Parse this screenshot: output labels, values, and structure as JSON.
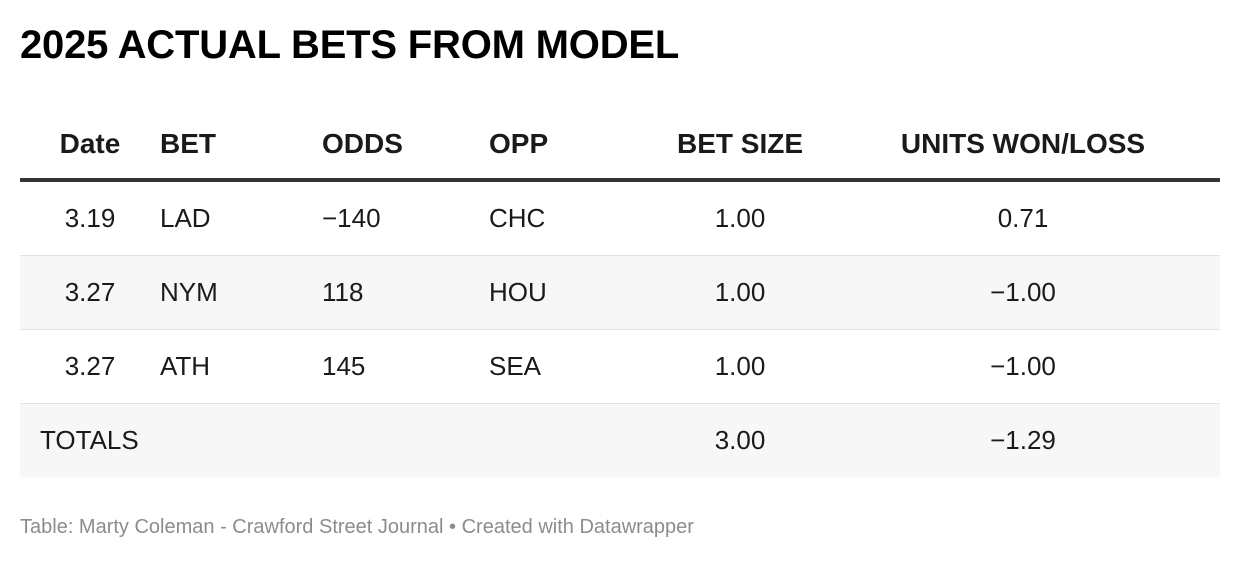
{
  "title": "2025 ACTUAL BETS FROM MODEL",
  "chart_data": {
    "type": "table",
    "title": "2025 ACTUAL BETS FROM MODEL",
    "columns": [
      "Date",
      "BET",
      "ODDS",
      "OPP",
      "BET SIZE",
      "UNITS WON/LOSS"
    ],
    "rows": [
      {
        "date": "3.19",
        "bet": "LAD",
        "odds": "−140",
        "opp": "CHC",
        "bet_size": "1.00",
        "units": "0.71"
      },
      {
        "date": "3.27",
        "bet": "NYM",
        "odds": "118",
        "opp": "HOU",
        "bet_size": "1.00",
        "units": "−1.00"
      },
      {
        "date": "3.27",
        "bet": "ATH",
        "odds": "145",
        "opp": "SEA",
        "bet_size": "1.00",
        "units": "−1.00"
      }
    ],
    "totals": {
      "label": "TOTALS",
      "bet_size": "3.00",
      "units": "−1.29"
    }
  },
  "footer": "Table: Marty Coleman - Crawford Street Journal • Created with Datawrapper"
}
